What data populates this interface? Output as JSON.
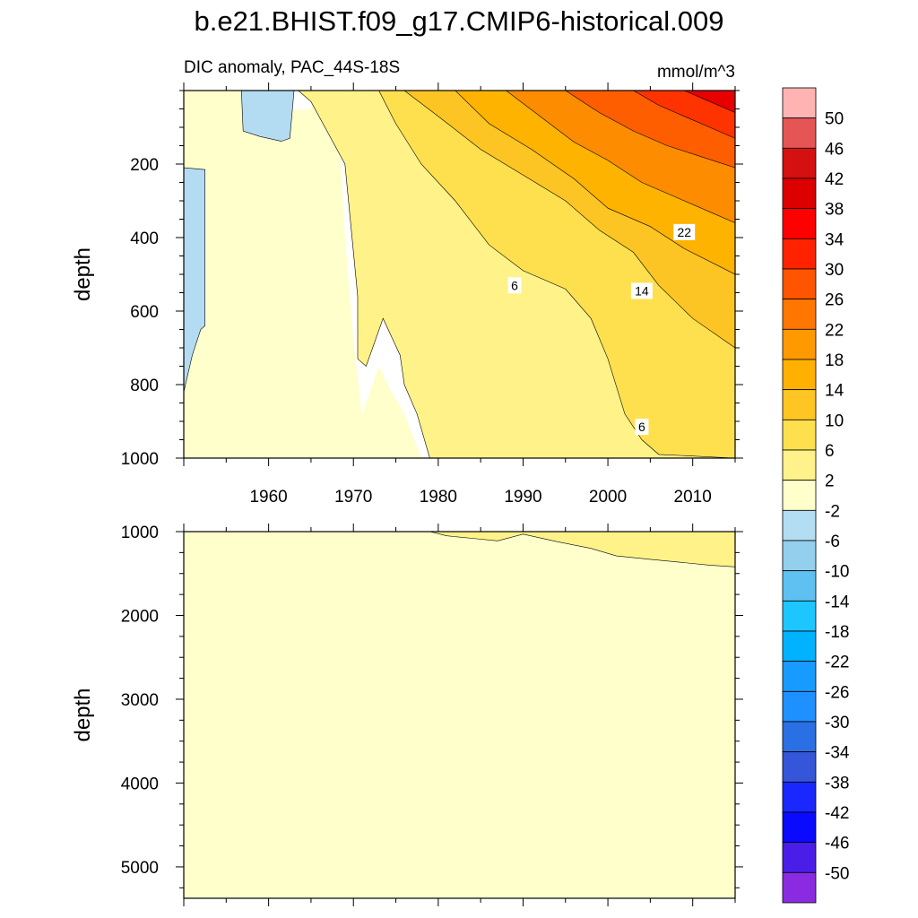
{
  "title": "b.e21.BHIST.f09_g17.CMIP6-historical.009",
  "left_string": "DIC anomaly, PAC_44S-18S",
  "right_string": "mmol/m^3",
  "colors": {
    "background": "#ffffff",
    "contour_line": "#000000"
  },
  "chart_data": [
    {
      "type": "heatmap",
      "panel": "upper",
      "title": "",
      "xlabel": "",
      "ylabel": "depth",
      "xlim": [
        1950,
        2015
      ],
      "ylim": [
        1000,
        0
      ],
      "x_ticks": [
        1960,
        1970,
        1980,
        1990,
        2000,
        2010
      ],
      "x_tick_labels": [
        "1960",
        "1970",
        "1980",
        "1990",
        "2000",
        "2010"
      ],
      "y_ticks": [
        200,
        400,
        600,
        800,
        1000
      ],
      "y_tick_labels": [
        "200",
        "400",
        "600",
        "800",
        "1000"
      ],
      "contour_labels": [
        {
          "text": "6",
          "x": 1989,
          "y": 530
        },
        {
          "text": "14",
          "x": 2004,
          "y": 545
        },
        {
          "text": "22",
          "x": 2009,
          "y": 385
        },
        {
          "text": "6",
          "x": 2004,
          "y": 915
        }
      ],
      "regions": [
        {
          "value_range": [
            -2,
            2
          ],
          "color": "#ffffcc",
          "poly": [
            [
              1950,
              0
            ],
            [
              1965,
              0
            ],
            [
              1965,
              50
            ],
            [
              1961,
              55
            ],
            [
              1958,
              0
            ],
            [
              1950,
              0
            ],
            [
              1950,
              1000
            ],
            [
              1950,
              1000
            ],
            [
              1978,
              1000
            ],
            [
              1976,
              880
            ],
            [
              1974,
              800
            ],
            [
              1973,
              750
            ],
            [
              1971,
              880
            ],
            [
              1970,
              680
            ],
            [
              1969,
              400
            ],
            [
              1968,
              0
            ]
          ]
        },
        {
          "value_range": [
            -6,
            -2
          ],
          "color": "#b3dcf2",
          "poly": [
            [
              1950,
              210
            ],
            [
              1950,
              820
            ],
            [
              1951,
              720
            ],
            [
              1952,
              650
            ],
            [
              1952.5,
              640
            ],
            [
              1952.5,
              215
            ]
          ]
        },
        {
          "value_range": [
            -6,
            -2
          ],
          "color": "#b3dcf2",
          "poly": [
            [
              1956.8,
              0
            ],
            [
              1963,
              0
            ],
            [
              1962.5,
              130
            ],
            [
              1961.5,
              138
            ],
            [
              1959,
              125
            ],
            [
              1957,
              110
            ]
          ]
        },
        {
          "value_range": [
            2,
            6
          ],
          "color": "#fff289",
          "poly": [
            [
              1963.5,
              0
            ],
            [
              1965,
              30
            ],
            [
              1969,
              200
            ],
            [
              1970.5,
              560
            ],
            [
              1970.5,
              730
            ],
            [
              1971.5,
              750
            ],
            [
              1973.5,
              620
            ],
            [
              1975.5,
              720
            ],
            [
              1976,
              800
            ],
            [
              1977.5,
              880
            ],
            [
              1979,
              1000
            ],
            [
              2015,
              1000
            ],
            [
              2015,
              0
            ]
          ]
        },
        {
          "value_range": [
            6,
            10
          ],
          "color": "#fee04f",
          "poly": [
            [
              1973,
              0
            ],
            [
              1975,
              90
            ],
            [
              1978,
              200
            ],
            [
              1982,
              300
            ],
            [
              1986,
              420
            ],
            [
              1990,
              490
            ],
            [
              1995,
              540
            ],
            [
              1998,
              620
            ],
            [
              2000,
              730
            ],
            [
              2002,
              880
            ],
            [
              2004,
              950
            ],
            [
              2006,
              990
            ],
            [
              2015,
              1000
            ],
            [
              2015,
              0
            ]
          ]
        },
        {
          "value_range": [
            10,
            14
          ],
          "color": "#fdc524",
          "poly": [
            [
              1976,
              0
            ],
            [
              1980,
              70
            ],
            [
              1985,
              160
            ],
            [
              1990,
              230
            ],
            [
              1995,
              300
            ],
            [
              1999,
              380
            ],
            [
              2003,
              440
            ],
            [
              2006,
              530
            ],
            [
              2010,
              620
            ],
            [
              2015,
              700
            ],
            [
              2015,
              0
            ]
          ]
        },
        {
          "value_range": [
            14,
            18
          ],
          "color": "#fdb300",
          "poly": [
            [
              1982,
              0
            ],
            [
              1986,
              90
            ],
            [
              1991,
              160
            ],
            [
              1996,
              240
            ],
            [
              2000,
              320
            ],
            [
              2005,
              370
            ],
            [
              2009,
              430
            ],
            [
              2015,
              500
            ],
            [
              2015,
              0
            ]
          ]
        },
        {
          "value_range": [
            18,
            22
          ],
          "color": "#fe8c01",
          "poly": [
            [
              1988,
              0
            ],
            [
              1992,
              70
            ],
            [
              1996,
              140
            ],
            [
              2000,
              190
            ],
            [
              2004,
              250
            ],
            [
              2008,
              290
            ],
            [
              2012,
              330
            ],
            [
              2015,
              360
            ],
            [
              2015,
              0
            ]
          ]
        },
        {
          "value_range": [
            22,
            26
          ],
          "color": "#ff5e00",
          "poly": [
            [
              1995,
              0
            ],
            [
              1999,
              60
            ],
            [
              2003,
              110
            ],
            [
              2007,
              150
            ],
            [
              2011,
              180
            ],
            [
              2015,
              210
            ],
            [
              2015,
              0
            ]
          ]
        },
        {
          "value_range": [
            26,
            30
          ],
          "color": "#ff3300",
          "poly": [
            [
              2003,
              0
            ],
            [
              2006,
              40
            ],
            [
              2009,
              70
            ],
            [
              2012,
              100
            ],
            [
              2015,
              130
            ],
            [
              2015,
              0
            ]
          ]
        },
        {
          "value_range": [
            34,
            38
          ],
          "color": "#e80000",
          "poly": [
            [
              2009,
              0
            ],
            [
              2011,
              20
            ],
            [
              2013,
              40
            ],
            [
              2015,
              60
            ],
            [
              2015,
              0
            ]
          ]
        }
      ]
    },
    {
      "type": "heatmap",
      "panel": "lower",
      "title": "",
      "xlabel": "",
      "ylabel": "depth",
      "xlim": [
        1950,
        2015
      ],
      "ylim": [
        5375,
        1000
      ],
      "y_ticks": [
        1000,
        2000,
        3000,
        4000,
        5000
      ],
      "y_tick_labels": [
        "1000",
        "2000",
        "3000",
        "4000",
        "5000"
      ],
      "regions": [
        {
          "value_range": [
            -2,
            2
          ],
          "color": "#ffffcc",
          "poly": [
            [
              1950,
              1000
            ],
            [
              2015,
              1000
            ],
            [
              2015,
              5375
            ],
            [
              1950,
              5375
            ]
          ]
        },
        {
          "value_range": [
            2,
            6
          ],
          "color": "#fff289",
          "poly": [
            [
              1979,
              1000
            ],
            [
              1981,
              1050
            ],
            [
              1984,
              1080
            ],
            [
              1987,
              1110
            ],
            [
              1990,
              1030
            ],
            [
              1994,
              1120
            ],
            [
              1998,
              1200
            ],
            [
              2001,
              1290
            ],
            [
              2005,
              1330
            ],
            [
              2008,
              1360
            ],
            [
              2012,
              1400
            ],
            [
              2015,
              1420
            ],
            [
              2015,
              1000
            ]
          ]
        }
      ]
    },
    {
      "type": "colorbar",
      "orientation": "vertical",
      "levels": [
        50,
        46,
        42,
        38,
        34,
        30,
        26,
        22,
        18,
        14,
        10,
        6,
        2,
        -2,
        -6,
        -10,
        -14,
        -18,
        -22,
        -26,
        -30,
        -34,
        -38,
        -42,
        -46,
        -50
      ],
      "level_labels": [
        "50",
        "46",
        "42",
        "38",
        "34",
        "30",
        "26",
        "22",
        "18",
        "14",
        "10",
        "6",
        "2",
        "-2",
        "-6",
        "-10",
        "-14",
        "-18",
        "-22",
        "-26",
        "-30",
        "-34",
        "-38",
        "-42",
        "-46",
        "-50"
      ],
      "colors": [
        "#ffb3b3",
        "#e65555",
        "#d41010",
        "#dc0000",
        "#ff0000",
        "#ff2200",
        "#ff5500",
        "#ff7700",
        "#ff9900",
        "#ffb000",
        "#ffc522",
        "#fee04f",
        "#fff28a",
        "#ffffcc",
        "#b3ddf2",
        "#94cfee",
        "#5ec1f1",
        "#1ec6ff",
        "#00b2ff",
        "#189bff",
        "#1e90ff",
        "#2b6fe5",
        "#3656da",
        "#1a28ff",
        "#0a0aff",
        "#4a1ee8",
        "#8a2be2"
      ]
    }
  ]
}
